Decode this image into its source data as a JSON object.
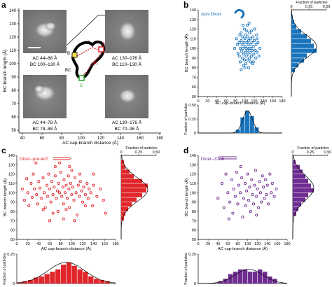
{
  "panel_letters": [
    "a",
    "b",
    "c",
    "d"
  ],
  "panel_a": {
    "ylabel": "BC branch length (Å)",
    "xlabel": "AC cap-branch distance (Å)",
    "yticks": [
      "140",
      "130",
      "120",
      "110",
      "100",
      "90",
      "80",
      "70",
      "60",
      "50"
    ],
    "xticks": [
      "40",
      "60",
      "80",
      "100",
      "120",
      "140",
      "160",
      "180"
    ],
    "captions": {
      "top_left": [
        "AC 44–88 Å",
        "BC 100–130 Å"
      ],
      "top_right": [
        "AC 130–176 Å",
        "BC 110–130 Å"
      ],
      "bottom_left": [
        "AC 44–78 Å",
        "BC 78–88 Å"
      ],
      "bottom_right": [
        "AC 130–176 Å",
        "BC 70–96 Å"
      ]
    },
    "schematic_labels": {
      "A": "A",
      "B": "B",
      "C": "C",
      "AB": "AB",
      "BC": "BC",
      "AC": "AC"
    }
  },
  "colors": {
    "blue": "#1a74bb",
    "red": "#e1262b",
    "purple": "#6f2c91"
  },
  "chart_data": [
    {
      "id": "b",
      "type": "scatter",
      "legend": "Apo-Dicer",
      "color": "#1a74bb",
      "ylabel": "BC branch length (Å)",
      "xlabel": "AC cap-branch distance (Å)",
      "xlim": [
        0,
        180
      ],
      "ylim": [
        50,
        140
      ],
      "xticks": [
        "0",
        "20",
        "40",
        "60",
        "80",
        "100",
        "120",
        "140",
        "160",
        "180"
      ],
      "yticks": [
        "50",
        "60",
        "70",
        "80",
        "90",
        "100",
        "110",
        "120",
        "130",
        "140"
      ],
      "points": [
        [
          78,
          100
        ],
        [
          82,
          110
        ],
        [
          84,
          104
        ],
        [
          85,
          95
        ],
        [
          88,
          92
        ],
        [
          88,
          106
        ],
        [
          90,
          86
        ],
        [
          90,
          100
        ],
        [
          92,
          116
        ],
        [
          92,
          108
        ],
        [
          93,
          97
        ],
        [
          94,
          104
        ],
        [
          95,
          90
        ],
        [
          95,
          112
        ],
        [
          96,
          100
        ],
        [
          97,
          82
        ],
        [
          97,
          94
        ],
        [
          98,
          106
        ],
        [
          99,
          120
        ],
        [
          99,
          88
        ],
        [
          100,
          102
        ],
        [
          100,
          110
        ],
        [
          101,
          96
        ],
        [
          102,
          114
        ],
        [
          102,
          84
        ],
        [
          103,
          100
        ],
        [
          103,
          92
        ],
        [
          104,
          106
        ],
        [
          105,
          124
        ],
        [
          105,
          98
        ],
        [
          106,
          88
        ],
        [
          106,
          112
        ],
        [
          107,
          104
        ],
        [
          107,
          94
        ],
        [
          108,
          80
        ],
        [
          108,
          108
        ],
        [
          109,
          100
        ],
        [
          110,
          116
        ],
        [
          110,
          90
        ],
        [
          111,
          104
        ],
        [
          111,
          96
        ],
        [
          112,
          110
        ],
        [
          112,
          86
        ],
        [
          113,
          100
        ],
        [
          114,
          118
        ],
        [
          114,
          92
        ],
        [
          115,
          106
        ],
        [
          116,
          98
        ],
        [
          117,
          112
        ],
        [
          117,
          84
        ],
        [
          118,
          102
        ],
        [
          119,
          94
        ],
        [
          120,
          108
        ],
        [
          121,
          120
        ],
        [
          122,
          98
        ],
        [
          123,
          90
        ],
        [
          124,
          104
        ],
        [
          125,
          114
        ],
        [
          126,
          96
        ],
        [
          128,
          106
        ],
        [
          130,
          92
        ],
        [
          132,
          100
        ],
        [
          96,
          124
        ],
        [
          104,
          118
        ],
        [
          109,
          126
        ],
        [
          118,
          86
        ],
        [
          100,
          80
        ],
        [
          92,
          78
        ],
        [
          126,
          110
        ],
        [
          89,
          114
        ]
      ],
      "x_hist": {
        "ylabel": "Fraction of particles",
        "yticks": [
          "0",
          "0.25",
          "0.50"
        ],
        "ylim": [
          0,
          0.5
        ],
        "bins": [
          [
            80,
            90,
            0.06
          ],
          [
            90,
            100,
            0.28
          ],
          [
            100,
            110,
            0.4
          ],
          [
            110,
            120,
            0.3
          ],
          [
            120,
            130,
            0.1
          ]
        ]
      },
      "y_hist": {
        "xlabel": "Fraction of particles",
        "xticks": [
          "0",
          "0.25",
          "0.50"
        ],
        "xlim": [
          0,
          0.5
        ],
        "bins": [
          [
            130,
            135,
            0.02
          ],
          [
            125,
            130,
            0.04
          ],
          [
            120,
            125,
            0.07
          ],
          [
            115,
            120,
            0.14
          ],
          [
            110,
            115,
            0.22
          ],
          [
            105,
            110,
            0.28
          ],
          [
            100,
            105,
            0.32
          ],
          [
            95,
            100,
            0.36
          ],
          [
            90,
            95,
            0.22
          ],
          [
            85,
            90,
            0.18
          ],
          [
            80,
            85,
            0.1
          ],
          [
            75,
            80,
            0.05
          ]
        ]
      }
    },
    {
      "id": "c",
      "type": "scatter",
      "legend": "Dicer–pre-let7",
      "color": "#e1262b",
      "ylabel": "BC branch length (Å)",
      "xlabel": "AC cap-branch distance (Å)",
      "xlim": [
        0,
        180
      ],
      "ylim": [
        50,
        140
      ],
      "xticks": [
        "0",
        "20",
        "40",
        "60",
        "80",
        "100",
        "120",
        "140",
        "160",
        "180"
      ],
      "yticks": [
        "50",
        "60",
        "70",
        "80",
        "90",
        "100",
        "110",
        "120",
        "130",
        "140"
      ],
      "points": [
        [
          10,
          104
        ],
        [
          14,
          92
        ],
        [
          18,
          115
        ],
        [
          20,
          100
        ],
        [
          22,
          86
        ],
        [
          26,
          110
        ],
        [
          28,
          95
        ],
        [
          30,
          120
        ],
        [
          32,
          104
        ],
        [
          36,
          98
        ],
        [
          38,
          88
        ],
        [
          40,
          112
        ],
        [
          42,
          105
        ],
        [
          45,
          94
        ],
        [
          48,
          116
        ],
        [
          50,
          100
        ],
        [
          52,
          84
        ],
        [
          55,
          108
        ],
        [
          56,
          96
        ],
        [
          58,
          120
        ],
        [
          60,
          104
        ],
        [
          62,
          90
        ],
        [
          64,
          112
        ],
        [
          66,
          98
        ],
        [
          68,
          106
        ],
        [
          70,
          118
        ],
        [
          72,
          94
        ],
        [
          74,
          102
        ],
        [
          75,
          80
        ],
        [
          76,
          110
        ],
        [
          78,
          100
        ],
        [
          80,
          122
        ],
        [
          82,
          96
        ],
        [
          84,
          106
        ],
        [
          85,
          88
        ],
        [
          86,
          114
        ],
        [
          88,
          100
        ],
        [
          90,
          108
        ],
        [
          92,
          94
        ],
        [
          94,
          118
        ],
        [
          95,
          104
        ],
        [
          96,
          84
        ],
        [
          98,
          110
        ],
        [
          100,
          98
        ],
        [
          102,
          106
        ],
        [
          104,
          92
        ],
        [
          106,
          116
        ],
        [
          108,
          100
        ],
        [
          110,
          76
        ],
        [
          112,
          108
        ],
        [
          114,
          96
        ],
        [
          116,
          112
        ],
        [
          118,
          102
        ],
        [
          120,
          90
        ],
        [
          122,
          106
        ],
        [
          125,
          98
        ],
        [
          128,
          110
        ],
        [
          130,
          94
        ],
        [
          132,
          104
        ],
        [
          135,
          100
        ],
        [
          138,
          86
        ],
        [
          140,
          108
        ],
        [
          146,
          96
        ],
        [
          152,
          104
        ],
        [
          158,
          92
        ],
        [
          60,
          70
        ],
        [
          85,
          72
        ],
        [
          35,
          132
        ],
        [
          70,
          128
        ],
        [
          100,
          124
        ],
        [
          115,
          120
        ],
        [
          48,
          82
        ],
        [
          125,
          86
        ],
        [
          90,
          82
        ],
        [
          105,
          70
        ],
        [
          140,
          120
        ],
        [
          162,
          78
        ],
        [
          66,
          78
        ],
        [
          78,
          132
        ],
        [
          96,
          128
        ]
      ],
      "x_hist": {
        "ylabel": "Fraction of particles",
        "yticks": [
          "0",
          "0.25"
        ],
        "ylim": [
          0,
          0.25
        ],
        "bins": [
          [
            0,
            10,
            0.01
          ],
          [
            10,
            20,
            0.02
          ],
          [
            20,
            30,
            0.03
          ],
          [
            30,
            40,
            0.05
          ],
          [
            40,
            50,
            0.06
          ],
          [
            50,
            60,
            0.08
          ],
          [
            60,
            70,
            0.1
          ],
          [
            70,
            80,
            0.12
          ],
          [
            80,
            90,
            0.16
          ],
          [
            90,
            100,
            0.18
          ],
          [
            100,
            110,
            0.15
          ],
          [
            110,
            120,
            0.12
          ],
          [
            120,
            130,
            0.1
          ],
          [
            130,
            140,
            0.06
          ],
          [
            140,
            150,
            0.04
          ],
          [
            150,
            160,
            0.03
          ],
          [
            160,
            170,
            0.02
          ]
        ]
      },
      "y_hist": {
        "xlabel": "Fraction of particles",
        "xticks": [
          "0",
          "0.25",
          "0.50"
        ],
        "xlim": [
          0,
          0.5
        ],
        "bins": [
          [
            130,
            135,
            0.04
          ],
          [
            125,
            130,
            0.06
          ],
          [
            120,
            125,
            0.12
          ],
          [
            115,
            120,
            0.18
          ],
          [
            110,
            115,
            0.3
          ],
          [
            105,
            110,
            0.38
          ],
          [
            100,
            105,
            0.36
          ],
          [
            95,
            100,
            0.3
          ],
          [
            90,
            95,
            0.22
          ],
          [
            85,
            90,
            0.15
          ],
          [
            80,
            85,
            0.1
          ],
          [
            75,
            80,
            0.06
          ],
          [
            70,
            75,
            0.04
          ]
        ]
      }
    },
    {
      "id": "d",
      "type": "scatter",
      "legend": "Dicer–37ab",
      "color": "#6f2c91",
      "ylabel": "BC branch length (Å)",
      "xlabel": "AC cap-branch distance (Å)",
      "xlim": [
        0,
        180
      ],
      "ylim": [
        50,
        140
      ],
      "xticks": [
        "0",
        "20",
        "40",
        "60",
        "80",
        "100",
        "120",
        "140",
        "160",
        "180"
      ],
      "yticks": [
        "50",
        "60",
        "70",
        "80",
        "90",
        "100",
        "110",
        "120",
        "130",
        "140"
      ],
      "points": [
        [
          40,
          94
        ],
        [
          48,
          110
        ],
        [
          52,
          84
        ],
        [
          56,
          120
        ],
        [
          60,
          100
        ],
        [
          64,
          90
        ],
        [
          68,
          114
        ],
        [
          70,
          78
        ],
        [
          72,
          104
        ],
        [
          75,
          96
        ],
        [
          78,
          122
        ],
        [
          80,
          88
        ],
        [
          82,
          108
        ],
        [
          85,
          100
        ],
        [
          88,
          116
        ],
        [
          90,
          74
        ],
        [
          92,
          94
        ],
        [
          95,
          110
        ],
        [
          96,
          86
        ],
        [
          98,
          102
        ],
        [
          100,
          120
        ],
        [
          102,
          92
        ],
        [
          104,
          106
        ],
        [
          106,
          80
        ],
        [
          108,
          114
        ],
        [
          110,
          98
        ],
        [
          112,
          88
        ],
        [
          114,
          108
        ],
        [
          116,
          124
        ],
        [
          118,
          96
        ],
        [
          120,
          104
        ],
        [
          122,
          84
        ],
        [
          124,
          112
        ],
        [
          126,
          100
        ],
        [
          128,
          90
        ],
        [
          130,
          118
        ],
        [
          132,
          106
        ],
        [
          134,
          94
        ],
        [
          136,
          114
        ],
        [
          138,
          98
        ],
        [
          140,
          108
        ],
        [
          142,
          88
        ],
        [
          145,
          120
        ],
        [
          148,
          100
        ],
        [
          150,
          110
        ],
        [
          154,
          96
        ],
        [
          158,
          104
        ],
        [
          62,
          72
        ],
        [
          86,
          128
        ],
        [
          118,
          76
        ]
      ],
      "x_hist": {
        "ylabel": "Fraction of particles",
        "yticks": [
          "0",
          "0.25"
        ],
        "ylim": [
          0,
          0.25
        ],
        "bins": [
          [
            40,
            50,
            0.02
          ],
          [
            50,
            60,
            0.04
          ],
          [
            60,
            70,
            0.08
          ],
          [
            70,
            80,
            0.1
          ],
          [
            80,
            90,
            0.12
          ],
          [
            90,
            100,
            0.12
          ],
          [
            100,
            110,
            0.1
          ],
          [
            110,
            120,
            0.1
          ],
          [
            120,
            130,
            0.12
          ],
          [
            130,
            140,
            0.1
          ],
          [
            140,
            150,
            0.06
          ],
          [
            150,
            160,
            0.04
          ]
        ]
      },
      "y_hist": {
        "xlabel": "Fraction of particles",
        "xticks": [
          "0",
          "0.25",
          "0.50"
        ],
        "xlim": [
          0,
          0.5
        ],
        "bins": [
          [
            130,
            135,
            0.04
          ],
          [
            125,
            130,
            0.1
          ],
          [
            120,
            125,
            0.14
          ],
          [
            115,
            120,
            0.18
          ],
          [
            110,
            115,
            0.22
          ],
          [
            105,
            110,
            0.26
          ],
          [
            100,
            105,
            0.3
          ],
          [
            95,
            100,
            0.22
          ],
          [
            90,
            95,
            0.18
          ],
          [
            85,
            90,
            0.12
          ],
          [
            80,
            85,
            0.08
          ],
          [
            75,
            80,
            0.05
          ]
        ]
      }
    }
  ]
}
